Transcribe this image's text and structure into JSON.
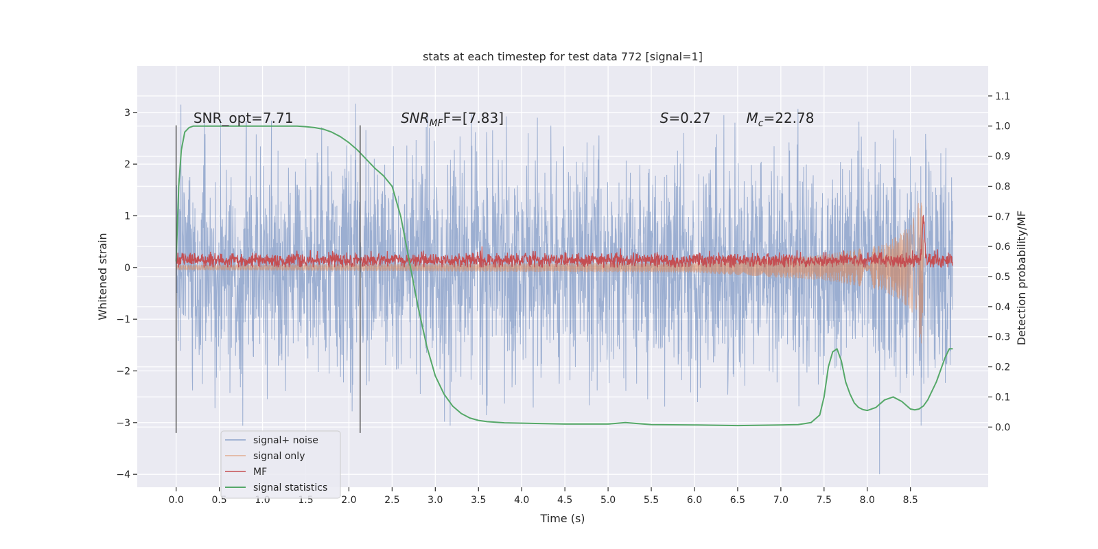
{
  "chart_data": {
    "type": "line",
    "title": "stats at each timestep for test data 772 [signal=1]",
    "xlabel": "Time (s)",
    "ylabel": "Whitened strain",
    "y2label": "Detection probability/MF",
    "xlim": [
      -0.45,
      9.4
    ],
    "ylim": [
      -4.25,
      3.9
    ],
    "y2lim": [
      -0.2,
      1.2
    ],
    "xticks": [
      0.0,
      0.5,
      1.0,
      1.5,
      2.0,
      2.5,
      3.0,
      3.5,
      4.0,
      4.5,
      5.0,
      5.5,
      6.0,
      6.5,
      7.0,
      7.5,
      8.0,
      8.5
    ],
    "xtick_labels": [
      "0.0",
      "0.5",
      "1.0",
      "1.5",
      "2.0",
      "2.5",
      "3.0",
      "3.5",
      "4.0",
      "4.5",
      "5.0",
      "5.5",
      "6.0",
      "6.5",
      "7.0",
      "7.5",
      "8.0",
      "8.5"
    ],
    "yticks": [
      -4,
      -3,
      -2,
      -1,
      0,
      1,
      2,
      3
    ],
    "ytick_labels": [
      "−4",
      "−3",
      "−2",
      "−1",
      "0",
      "1",
      "2",
      "3"
    ],
    "y2ticks": [
      0.0,
      0.1,
      0.2,
      0.3,
      0.4,
      0.5,
      0.6,
      0.7,
      0.8,
      0.9,
      1.0,
      1.1
    ],
    "y2tick_labels": [
      "0.0",
      "0.1",
      "0.2",
      "0.3",
      "0.4",
      "0.5",
      "0.6",
      "0.7",
      "0.8",
      "0.9",
      "1.0",
      "1.1"
    ],
    "grid": true,
    "legend_position": "bottom-left",
    "vertical_lines": [
      {
        "x": 0.0,
        "y_range": [
          -3.2,
          2.75
        ]
      },
      {
        "x": 2.13,
        "y_range": [
          -3.2,
          2.75
        ]
      }
    ],
    "annotations": [
      {
        "text": "SNR_opt=7.71",
        "x": 0.2,
        "y": 2.8
      },
      {
        "prefix": "SNR",
        "sub": "MF",
        "suffix": "F=[7.83]",
        "x": 2.6,
        "y": 2.8
      },
      {
        "prefix": "S",
        "sub": "",
        "suffix": "=0.27",
        "x": 5.6,
        "y": 2.8
      },
      {
        "prefix": "M",
        "sub": "c",
        "suffix": "=22.78",
        "x": 6.6,
        "y": 2.8
      }
    ],
    "series": [
      {
        "name": "signal+ noise",
        "color": "#4c72b0",
        "axis": "left",
        "x_range": [
          0.0,
          8.99
        ],
        "approx_band": [
          -1.5,
          1.5
        ],
        "approx_extremes": [
          -4.0,
          3.6
        ]
      },
      {
        "name": "signal only",
        "color": "#dd8452",
        "axis": "left",
        "x_range": [
          0.0,
          8.66
        ],
        "envelope_points": [
          [
            0.0,
            0.05
          ],
          [
            6.0,
            0.1
          ],
          [
            7.5,
            0.25
          ],
          [
            8.2,
            0.45
          ],
          [
            8.5,
            0.8
          ],
          [
            8.63,
            1.5
          ],
          [
            8.66,
            0.0
          ]
        ]
      },
      {
        "name": "MF",
        "color": "#c44e52",
        "axis": "left",
        "x_range": [
          0.0,
          8.99
        ],
        "approx_band": [
          0.0,
          0.3
        ],
        "peak": [
          8.65,
          1.0
        ]
      },
      {
        "name": "signal statistics",
        "color": "#55a868",
        "axis": "right",
        "x": [
          0.0,
          0.03,
          0.06,
          0.1,
          0.15,
          0.2,
          0.3,
          0.5,
          0.8,
          1.0,
          1.2,
          1.4,
          1.5,
          1.6,
          1.7,
          1.8,
          1.9,
          2.0,
          2.1,
          2.2,
          2.3,
          2.4,
          2.5,
          2.6,
          2.7,
          2.8,
          2.9,
          3.0,
          3.1,
          3.2,
          3.3,
          3.4,
          3.5,
          3.6,
          3.8,
          4.0,
          4.5,
          5.0,
          5.2,
          5.5,
          6.0,
          6.5,
          7.0,
          7.2,
          7.35,
          7.45,
          7.5,
          7.55,
          7.6,
          7.65,
          7.7,
          7.75,
          7.8,
          7.85,
          7.9,
          7.95,
          8.0,
          8.1,
          8.2,
          8.3,
          8.4,
          8.5,
          8.55,
          8.6,
          8.65,
          8.7,
          8.8,
          8.9,
          8.95,
          8.99
        ],
        "y": [
          0.55,
          0.8,
          0.92,
          0.98,
          0.995,
          1.0,
          1.0,
          1.0,
          1.0,
          1.0,
          1.0,
          1.0,
          0.998,
          0.995,
          0.99,
          0.98,
          0.965,
          0.945,
          0.92,
          0.89,
          0.86,
          0.835,
          0.8,
          0.7,
          0.55,
          0.4,
          0.27,
          0.17,
          0.11,
          0.07,
          0.045,
          0.03,
          0.022,
          0.018,
          0.014,
          0.013,
          0.01,
          0.01,
          0.015,
          0.008,
          0.007,
          0.005,
          0.007,
          0.008,
          0.015,
          0.04,
          0.1,
          0.2,
          0.25,
          0.26,
          0.22,
          0.15,
          0.11,
          0.08,
          0.065,
          0.058,
          0.055,
          0.065,
          0.09,
          0.1,
          0.085,
          0.06,
          0.057,
          0.06,
          0.07,
          0.09,
          0.15,
          0.23,
          0.26,
          0.26
        ]
      }
    ]
  }
}
